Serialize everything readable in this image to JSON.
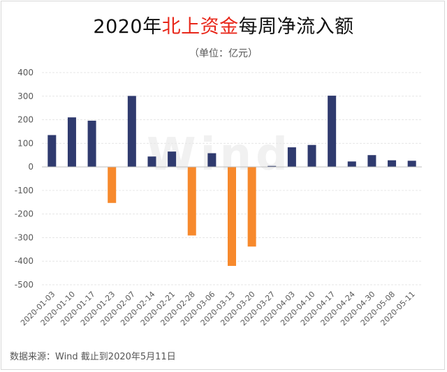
{
  "title": {
    "part1": "2020年",
    "highlight": "北上资金",
    "part2": "每周净流入额"
  },
  "unit_label": "（单位：亿元）",
  "footer": "数据来源：Wind  截止到2020年5月11日",
  "watermark": "Wind",
  "colors": {
    "positive": "#2f3a6e",
    "negative": "#f7892c",
    "grid": "#e6e6e6",
    "axis_text": "#595959",
    "title_highlight": "#e8271a"
  },
  "chart_data": {
    "type": "bar",
    "categories": [
      "2020-01-03",
      "2020-01-10",
      "2020-01-17",
      "2020-01-23",
      "2020-02-07",
      "2020-02-14",
      "2020-02-21",
      "2020-02-28",
      "2020-03-06",
      "2020-03-13",
      "2020-03-20",
      "2020-03-27",
      "2020-04-03",
      "2020-04-10",
      "2020-04-17",
      "2020-04-24",
      "2020-04-30",
      "2020-05-08",
      "2020-05-11"
    ],
    "values": [
      135,
      210,
      196,
      -153,
      301,
      44,
      65,
      -291,
      58,
      -420,
      -338,
      4,
      83,
      93,
      302,
      23,
      50,
      28,
      26
    ],
    "ylim": [
      -500,
      400
    ],
    "yticks": [
      400,
      300,
      200,
      100,
      0,
      -100,
      -200,
      -300,
      -400,
      -500
    ],
    "grid": true,
    "legend": "none"
  }
}
